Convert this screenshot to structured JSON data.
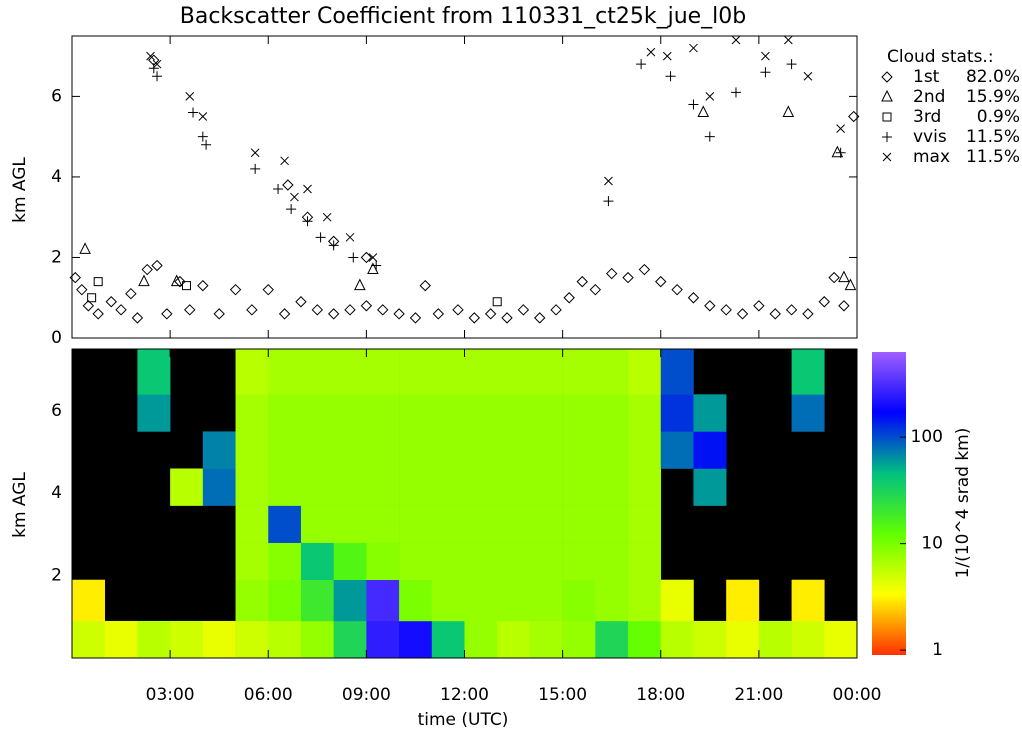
{
  "chart_data": [
    {
      "type": "scatter",
      "title": "Backscatter Coefficient from 110331_ct25k_jue_l0b",
      "y_label": "km AGL",
      "xlim": [
        0,
        24
      ],
      "ylim": [
        0,
        7.5
      ],
      "yticks": [
        0,
        2,
        4,
        6
      ],
      "legend_title": "Cloud stats.:",
      "legend": "right",
      "series": [
        {
          "name": "1st",
          "share": 82.0,
          "share_label": "82.0%",
          "marker": "diamond",
          "color": "#000000",
          "x": [
            0.1,
            0.3,
            0.5,
            0.8,
            1.2,
            1.5,
            1.8,
            2.0,
            2.3,
            2.6,
            2.9,
            3.3,
            3.6,
            4.0,
            4.5,
            5.0,
            5.5,
            6.0,
            6.5,
            7.0,
            7.5,
            8.0,
            8.5,
            9.0,
            9.5,
            10.0,
            10.5,
            10.8,
            11.2,
            11.8,
            12.3,
            12.8,
            13.3,
            13.8,
            14.3,
            14.8,
            15.2,
            15.6,
            16.0,
            16.5,
            17.0,
            17.5,
            18.0,
            18.5,
            19.0,
            19.5,
            20.0,
            20.5,
            21.0,
            21.5,
            22.0,
            22.5,
            23.0,
            23.3,
            23.6,
            23.9,
            6.6,
            7.2,
            8.0,
            9.0,
            2.5
          ],
          "values": [
            1.5,
            1.2,
            0.8,
            0.6,
            0.9,
            0.7,
            1.1,
            0.5,
            1.7,
            1.8,
            0.6,
            1.4,
            0.7,
            1.3,
            0.6,
            1.2,
            0.7,
            1.2,
            0.6,
            0.9,
            0.7,
            0.6,
            0.7,
            0.8,
            0.7,
            0.6,
            0.5,
            1.3,
            0.6,
            0.7,
            0.5,
            0.6,
            0.5,
            0.7,
            0.5,
            0.7,
            1.0,
            1.4,
            1.2,
            1.6,
            1.5,
            1.7,
            1.4,
            1.2,
            1.0,
            0.8,
            0.7,
            0.6,
            0.8,
            0.6,
            0.7,
            0.6,
            0.9,
            1.5,
            0.8,
            5.5,
            3.8,
            3.0,
            2.4,
            2.0,
            6.9
          ]
        },
        {
          "name": "2nd",
          "share": 15.9,
          "share_label": "15.9%",
          "marker": "triangle",
          "color": "#000000",
          "x": [
            0.4,
            2.2,
            3.2,
            8.8,
            9.2,
            19.3,
            21.9,
            23.4,
            23.6,
            23.8
          ],
          "values": [
            2.2,
            1.4,
            1.4,
            1.3,
            1.7,
            5.6,
            5.6,
            4.6,
            1.5,
            1.3
          ]
        },
        {
          "name": "3rd",
          "share": 0.9,
          "share_label": "0.9%",
          "marker": "square",
          "color": "#000000",
          "x": [
            0.6,
            0.8,
            3.5,
            13.0
          ],
          "values": [
            1.0,
            1.4,
            1.3,
            0.9
          ]
        },
        {
          "name": "vvis",
          "share": 11.5,
          "share_label": "11.5%",
          "marker": "plus",
          "color": "#000000",
          "x": [
            2.5,
            2.6,
            3.7,
            4.0,
            4.1,
            5.6,
            6.3,
            6.7,
            7.2,
            7.6,
            8.0,
            8.6,
            9.3,
            16.4,
            17.4,
            18.3,
            19.0,
            19.5,
            20.3,
            21.2,
            22.0,
            23.5
          ],
          "values": [
            6.7,
            6.5,
            5.6,
            5.0,
            4.8,
            4.2,
            3.7,
            3.2,
            2.9,
            2.5,
            2.3,
            2.0,
            1.8,
            3.4,
            6.8,
            6.5,
            5.8,
            5.0,
            6.1,
            6.6,
            6.8,
            4.6
          ]
        },
        {
          "name": "max",
          "share": 11.5,
          "share_label": "11.5%",
          "marker": "cross",
          "color": "#000000",
          "x": [
            2.4,
            2.6,
            3.6,
            4.0,
            5.6,
            6.5,
            6.8,
            7.2,
            7.8,
            8.5,
            9.2,
            16.4,
            17.7,
            18.2,
            19.0,
            19.5,
            20.3,
            21.2,
            21.9,
            22.5,
            23.5
          ],
          "values": [
            7.0,
            6.8,
            6.0,
            5.5,
            4.6,
            4.4,
            3.5,
            3.7,
            3.0,
            2.5,
            2.0,
            3.9,
            7.1,
            7.0,
            7.2,
            6.0,
            7.4,
            7.0,
            7.4,
            6.5,
            5.2
          ]
        }
      ]
    },
    {
      "type": "heatmap",
      "x_label": "time (UTC)",
      "y_label": "km AGL",
      "colorbar_label": "1/(10^4 srad km)",
      "xlim": [
        0,
        24
      ],
      "ylim": [
        0,
        7.5
      ],
      "yticks": [
        2,
        4,
        6
      ],
      "xticks": [
        {
          "value": 3,
          "label": "03:00"
        },
        {
          "value": 6,
          "label": "06:00"
        },
        {
          "value": 9,
          "label": "09:00"
        },
        {
          "value": 12,
          "label": "12:00"
        },
        {
          "value": 15,
          "label": "15:00"
        },
        {
          "value": 18,
          "label": "18:00"
        },
        {
          "value": 21,
          "label": "21:00"
        },
        {
          "value": 24,
          "label": "00:00"
        }
      ],
      "zlim": [
        0.9,
        630
      ],
      "zticks": [
        1,
        10,
        100
      ],
      "zscale": "log",
      "colormap": [
        "#ff3000",
        "#ffff00",
        "#60ff00",
        "#00c080",
        "#0000ff",
        "#a060ff"
      ],
      "background": "#000000",
      "xbins": [
        0,
        1,
        2,
        3,
        4,
        5,
        6,
        7,
        8,
        9,
        10,
        11,
        12,
        13,
        14,
        15,
        16,
        17,
        18,
        19,
        20,
        21,
        22,
        23,
        24
      ],
      "ybins": [
        0,
        0.9,
        1.9,
        2.8,
        3.7,
        4.6,
        5.5,
        6.4,
        7.5
      ],
      "z": [
        [
          5,
          4,
          6,
          5,
          4,
          5,
          6,
          8,
          30,
          250,
          200,
          40,
          8,
          6,
          7,
          8,
          30,
          12,
          6,
          5,
          4,
          6,
          5,
          4
        ],
        [
          3,
          null,
          null,
          null,
          null,
          8,
          10,
          20,
          60,
          300,
          10,
          8,
          8,
          8,
          8,
          9,
          8,
          7,
          4,
          null,
          3,
          null,
          3,
          null
        ],
        [
          null,
          null,
          null,
          null,
          null,
          7,
          9,
          40,
          15,
          9,
          8,
          8,
          8,
          8,
          8,
          8,
          8,
          7,
          null,
          null,
          null,
          null,
          null,
          null
        ],
        [
          null,
          null,
          null,
          null,
          null,
          7,
          100,
          8,
          8,
          8,
          8,
          8,
          8,
          8,
          8,
          8,
          8,
          7,
          null,
          null,
          null,
          null,
          null,
          null
        ],
        [
          null,
          null,
          null,
          6,
          80,
          7,
          8,
          8,
          8,
          8,
          8,
          8,
          8,
          8,
          8,
          8,
          8,
          7,
          null,
          60,
          null,
          null,
          null,
          null
        ],
        [
          null,
          null,
          null,
          null,
          70,
          7,
          8,
          8,
          8,
          8,
          8,
          8,
          8,
          8,
          8,
          8,
          8,
          7,
          80,
          150,
          null,
          null,
          null,
          null
        ],
        [
          null,
          null,
          60,
          null,
          null,
          7,
          8,
          8,
          8,
          8,
          8,
          8,
          8,
          8,
          8,
          8,
          8,
          7,
          120,
          60,
          null,
          null,
          80,
          null
        ],
        [
          null,
          null,
          40,
          null,
          null,
          6,
          7,
          7,
          7,
          7,
          7,
          7,
          7,
          7,
          7,
          7,
          7,
          6,
          100,
          null,
          null,
          null,
          40,
          null
        ]
      ]
    }
  ]
}
